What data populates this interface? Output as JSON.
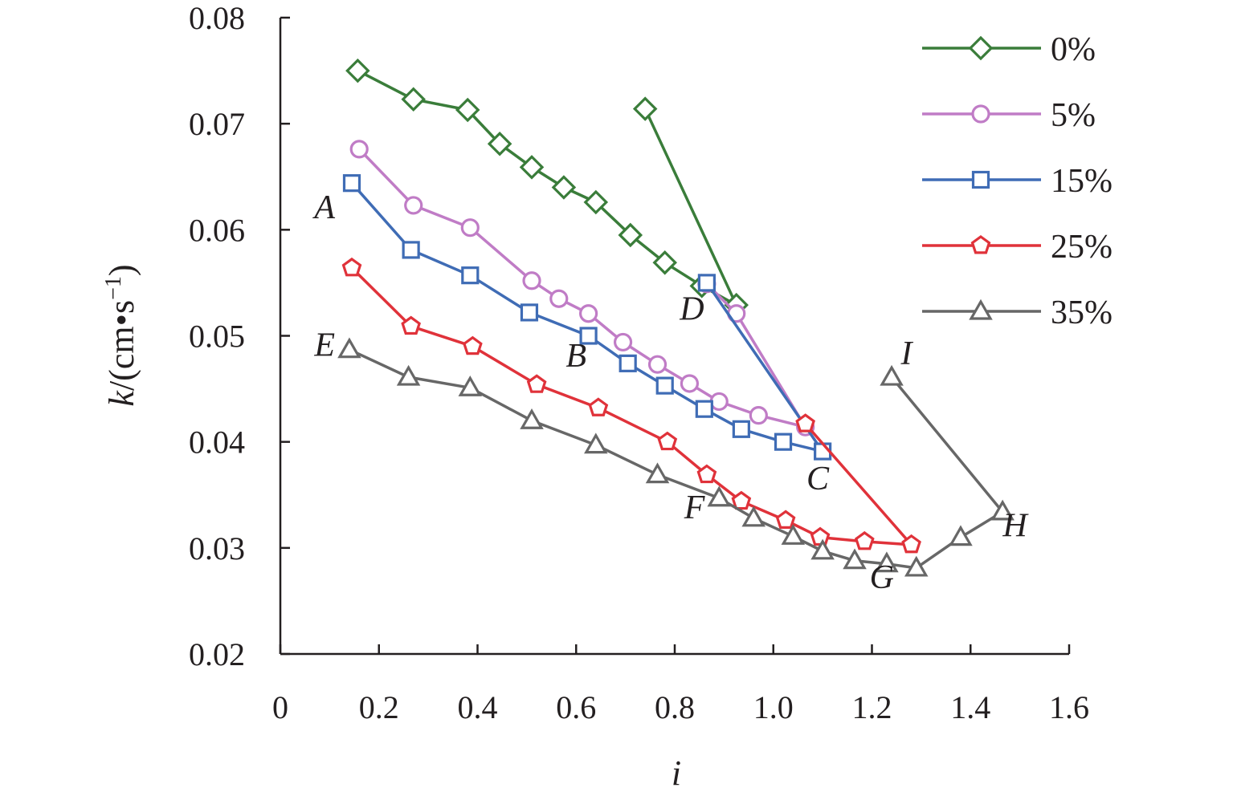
{
  "chart_data": {
    "type": "line",
    "title": "",
    "xlabel": "i",
    "ylabel": "k/(cm•s⁻¹)",
    "ylabel_parts": {
      "var": "k",
      "unit": "/(cm•s",
      "sup": "−1",
      "close": ")"
    },
    "xlim": [
      0,
      1.6
    ],
    "ylim": [
      0.02,
      0.08
    ],
    "xticks": [
      0,
      0.2,
      0.4,
      0.6,
      0.8,
      1.0,
      1.2,
      1.4,
      1.6
    ],
    "xtick_labels": [
      "0",
      "0.2",
      "0.4",
      "0.6",
      "0.8",
      "1.0",
      "1.2",
      "1.4",
      "1.6"
    ],
    "yticks": [
      0.02,
      0.03,
      0.04,
      0.05,
      0.06,
      0.07,
      0.08
    ],
    "ytick_labels": [
      "0.02",
      "0.03",
      "0.04",
      "0.05",
      "0.06",
      "0.07",
      "0.08"
    ],
    "grid": false,
    "legend": "top-right",
    "series": [
      {
        "name": "0%",
        "color": "#3a7d3a",
        "marker": "diamond",
        "x": [
          0.157,
          0.27,
          0.38,
          0.445,
          0.51,
          0.575,
          0.64,
          0.71,
          0.78,
          0.855,
          0.925,
          0.74
        ],
        "y": [
          0.075,
          0.0723,
          0.0713,
          0.0681,
          0.0659,
          0.064,
          0.0626,
          0.0595,
          0.0569,
          0.0547,
          0.0529,
          0.0714
        ]
      },
      {
        "name": "5%",
        "color": "#c07cc6",
        "marker": "circle",
        "x": [
          0.16,
          0.27,
          0.385,
          0.51,
          0.565,
          0.625,
          0.695,
          0.765,
          0.83,
          0.89,
          0.97,
          1.065,
          0.925,
          0.865
        ],
        "y": [
          0.0676,
          0.0623,
          0.0602,
          0.0552,
          0.0535,
          0.0521,
          0.0494,
          0.0473,
          0.0455,
          0.0438,
          0.0425,
          0.0414,
          0.0521,
          0.0549
        ]
      },
      {
        "name": "15%",
        "color": "#3f6cb5",
        "marker": "square",
        "x": [
          0.145,
          0.265,
          0.385,
          0.505,
          0.625,
          0.705,
          0.78,
          0.86,
          0.935,
          1.02,
          1.1,
          0.865
        ],
        "y": [
          0.0644,
          0.0581,
          0.0557,
          0.0522,
          0.05,
          0.0474,
          0.0453,
          0.0431,
          0.0412,
          0.04,
          0.0391,
          0.055
        ]
      },
      {
        "name": "25%",
        "color": "#e0323a",
        "marker": "pentagon",
        "x": [
          0.145,
          0.265,
          0.39,
          0.52,
          0.645,
          0.785,
          0.865,
          0.935,
          1.025,
          1.095,
          1.185,
          1.28,
          1.065
        ],
        "y": [
          0.0564,
          0.0509,
          0.049,
          0.0454,
          0.0432,
          0.04,
          0.0369,
          0.0344,
          0.0326,
          0.031,
          0.0306,
          0.0303,
          0.0417
        ]
      },
      {
        "name": "35%",
        "color": "#676767",
        "marker": "triangle",
        "x": [
          0.14,
          0.26,
          0.385,
          0.51,
          0.64,
          0.765,
          0.89,
          0.96,
          1.04,
          1.1,
          1.165,
          1.23,
          1.29,
          1.38,
          1.465,
          1.24
        ],
        "y": [
          0.0487,
          0.0461,
          0.0451,
          0.042,
          0.0397,
          0.0369,
          0.0347,
          0.0328,
          0.0311,
          0.0297,
          0.0288,
          0.0285,
          0.0281,
          0.031,
          0.0334,
          0.0461
        ]
      }
    ],
    "annotations": [
      {
        "text": "A",
        "x": 0.09,
        "y": 0.0611
      },
      {
        "text": "B",
        "x": 0.6,
        "y": 0.0471
      },
      {
        "text": "C",
        "x": 1.09,
        "y": 0.0355
      },
      {
        "text": "D",
        "x": 0.835,
        "y": 0.0515
      },
      {
        "text": "E",
        "x": 0.09,
        "y": 0.0481
      },
      {
        "text": "F",
        "x": 0.84,
        "y": 0.0328
      },
      {
        "text": "G",
        "x": 1.22,
        "y": 0.0262
      },
      {
        "text": "H",
        "x": 1.49,
        "y": 0.0311
      },
      {
        "text": "I",
        "x": 1.27,
        "y": 0.0473
      }
    ]
  }
}
